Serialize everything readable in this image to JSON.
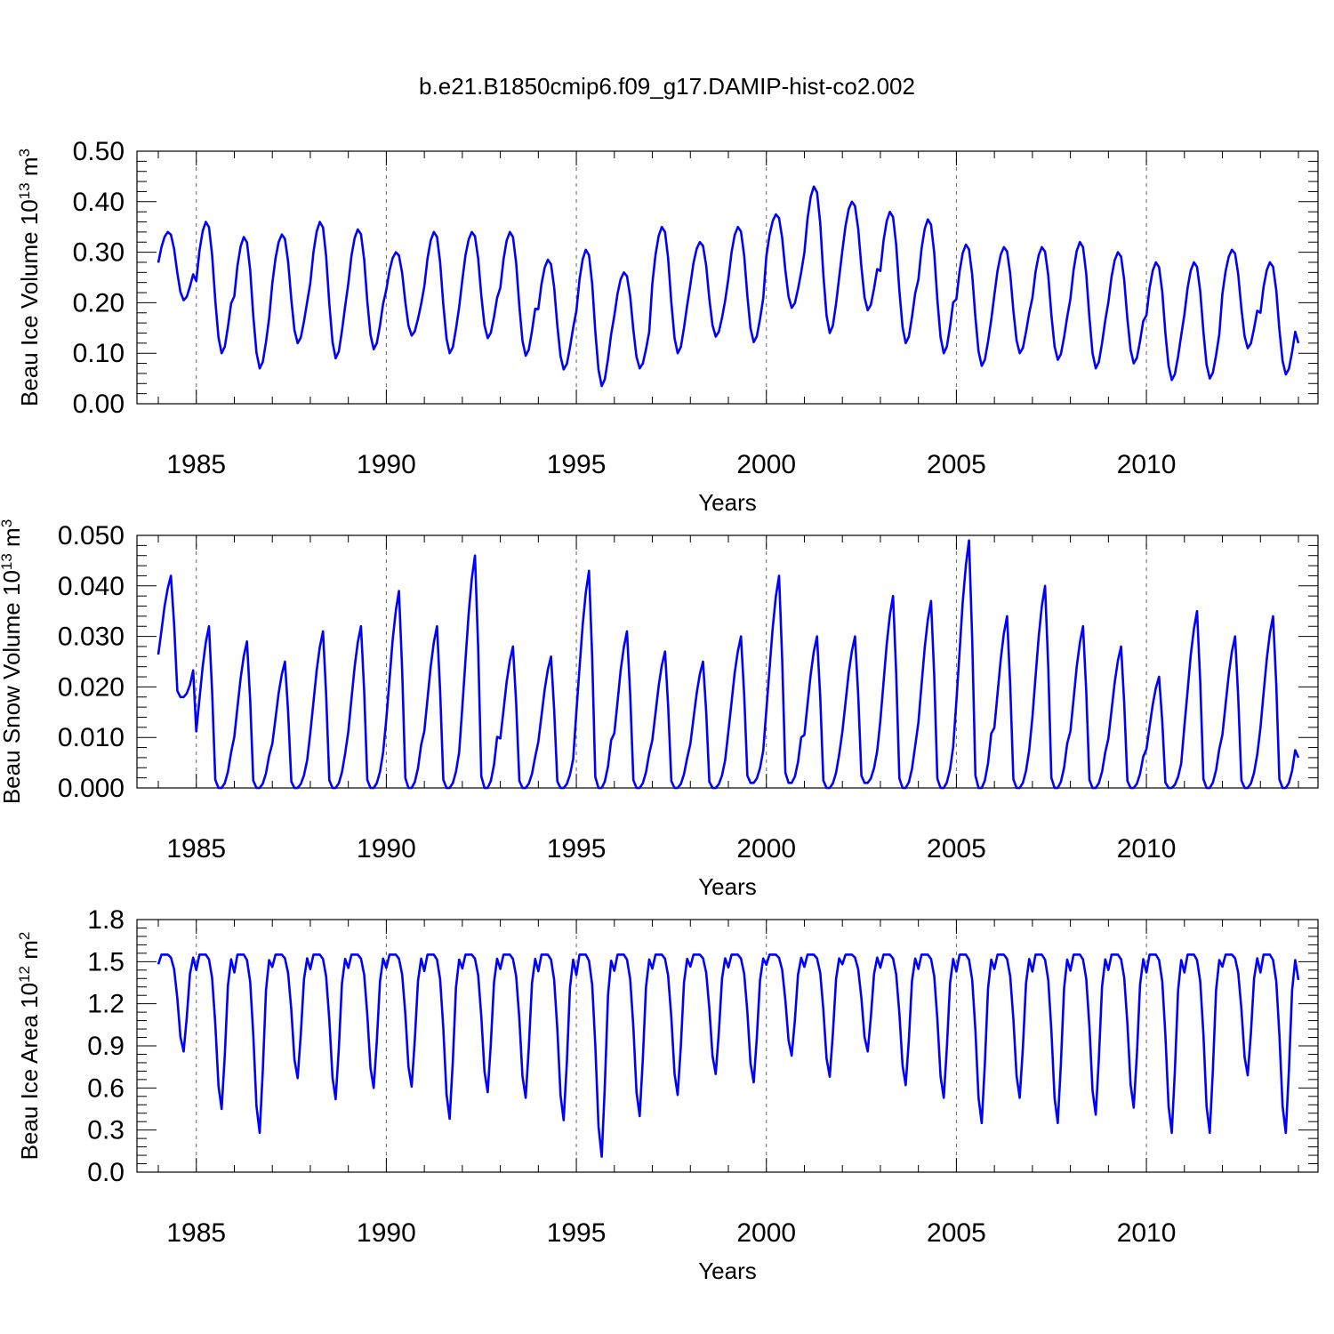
{
  "figure": {
    "title": "b.e21.B1850cmip6.f09_g17.DAMIP-hist-co2.002"
  },
  "chart_data": [
    {
      "type": "line",
      "title": "",
      "xlabel": "Years",
      "ylabel": "Beau Ice Volume 10",
      "ylabel_exp": "13",
      "ylabel_unit": " m",
      "ylabel_unit_exp": "3",
      "xlim": [
        1984.0,
        2014.0
      ],
      "ylim": [
        0.0,
        0.5
      ],
      "yticks": [
        0.0,
        0.1,
        0.2,
        0.3,
        0.4,
        0.5
      ],
      "ytick_labels": [
        "0.00",
        "0.10",
        "0.20",
        "0.30",
        "0.40",
        "0.50"
      ],
      "xticks": [
        1985,
        1990,
        1995,
        2000,
        2005,
        2010
      ],
      "xtick_labels": [
        "1985",
        "1990",
        "1995",
        "2000",
        "2005",
        "2010"
      ],
      "gridlines_x": [
        1985,
        1990,
        1995,
        2000,
        2005,
        2010
      ],
      "line_color": "#0000ff",
      "series": [
        {
          "name": "Beau Ice Volume",
          "start_year": 1984.0,
          "step": 0.08333,
          "peaks": [
            0.34,
            0.36,
            0.33,
            0.335,
            0.36,
            0.345,
            0.3,
            0.34,
            0.34,
            0.34,
            0.285,
            0.305,
            0.26,
            0.35,
            0.32,
            0.35,
            0.375,
            0.43,
            0.4,
            0.38,
            0.365,
            0.315,
            0.31,
            0.31,
            0.32,
            0.3,
            0.28,
            0.28,
            0.305,
            0.28
          ],
          "troughs": [
            0.205,
            0.1,
            0.07,
            0.12,
            0.09,
            0.108,
            0.135,
            0.1,
            0.13,
            0.095,
            0.068,
            0.035,
            0.07,
            0.1,
            0.133,
            0.122,
            0.19,
            0.14,
            0.185,
            0.12,
            0.1,
            0.075,
            0.1,
            0.087,
            0.07,
            0.08,
            0.047,
            0.05,
            0.11,
            0.058
          ],
          "end_value": 0.12
        }
      ]
    },
    {
      "type": "line",
      "title": "",
      "xlabel": "Years",
      "ylabel": "Beau Snow Volume 10",
      "ylabel_exp": "13",
      "ylabel_unit": " m",
      "ylabel_unit_exp": "3",
      "xlim": [
        1984.0,
        2014.0
      ],
      "ylim": [
        0.0,
        0.05
      ],
      "yticks": [
        0.0,
        0.01,
        0.02,
        0.03,
        0.04,
        0.05
      ],
      "ytick_labels": [
        "0.000",
        "0.010",
        "0.020",
        "0.030",
        "0.040",
        "0.050"
      ],
      "xticks": [
        1985,
        1990,
        1995,
        2000,
        2005,
        2010
      ],
      "xtick_labels": [
        "1985",
        "1990",
        "1995",
        "2000",
        "2005",
        "2010"
      ],
      "gridlines_x": [
        1985,
        1990,
        1995,
        2000,
        2005,
        2010
      ],
      "line_color": "#0000ff",
      "series": [
        {
          "name": "Beau Snow Volume",
          "start_year": 1984.0,
          "step": 0.08333,
          "peaks": [
            0.042,
            0.032,
            0.029,
            0.025,
            0.031,
            0.032,
            0.039,
            0.032,
            0.046,
            0.028,
            0.026,
            0.043,
            0.031,
            0.027,
            0.025,
            0.03,
            0.042,
            0.03,
            0.03,
            0.038,
            0.037,
            0.049,
            0.034,
            0.04,
            0.032,
            0.028,
            0.022,
            0.035,
            0.03,
            0.034
          ],
          "troughs": [
            0.018,
            0.0,
            0.0,
            0.0,
            0.0,
            0.0,
            0.0,
            0.0,
            0.0,
            0.0,
            0.0,
            0.0,
            0.0,
            0.0,
            0.0,
            0.001,
            0.001,
            0.0,
            0.001,
            0.0,
            0.0,
            0.0,
            0.0,
            0.0,
            0.0,
            0.0,
            0.0,
            0.0,
            0.0,
            0.0
          ],
          "end_value": 0.006
        }
      ]
    },
    {
      "type": "line",
      "title": "",
      "xlabel": "Years",
      "ylabel": "Beau Ice Area 10",
      "ylabel_exp": "12",
      "ylabel_unit": " m",
      "ylabel_unit_exp": "2",
      "xlim": [
        1984.0,
        2014.0
      ],
      "ylim": [
        0.0,
        1.8
      ],
      "yticks": [
        0.0,
        0.3,
        0.6,
        0.9,
        1.2,
        1.5,
        1.8
      ],
      "ytick_labels": [
        "0.0",
        "0.3",
        "0.6",
        "0.9",
        "1.2",
        "1.5",
        "1.8"
      ],
      "xticks": [
        1985,
        1990,
        1995,
        2000,
        2005,
        2010
      ],
      "xtick_labels": [
        "1985",
        "1990",
        "1995",
        "2000",
        "2005",
        "2010"
      ],
      "gridlines_x": [
        1985,
        1990,
        1995,
        2000,
        2005,
        2010
      ],
      "line_color": "#0000ff",
      "series": [
        {
          "name": "Beau Ice Area",
          "start_year": 1984.0,
          "step": 0.08333,
          "peaks": [
            1.55,
            1.55,
            1.55,
            1.55,
            1.55,
            1.55,
            1.55,
            1.55,
            1.55,
            1.55,
            1.55,
            1.55,
            1.55,
            1.55,
            1.55,
            1.55,
            1.55,
            1.55,
            1.55,
            1.55,
            1.55,
            1.55,
            1.55,
            1.55,
            1.55,
            1.55,
            1.55,
            1.55,
            1.55,
            1.55
          ],
          "troughs": [
            0.86,
            0.45,
            0.28,
            0.67,
            0.52,
            0.6,
            0.61,
            0.38,
            0.57,
            0.53,
            0.37,
            0.11,
            0.4,
            0.55,
            0.7,
            0.64,
            0.83,
            0.68,
            0.86,
            0.62,
            0.53,
            0.35,
            0.53,
            0.35,
            0.41,
            0.46,
            0.28,
            0.28,
            0.69,
            0.28
          ],
          "end_value": 1.37
        }
      ]
    }
  ]
}
